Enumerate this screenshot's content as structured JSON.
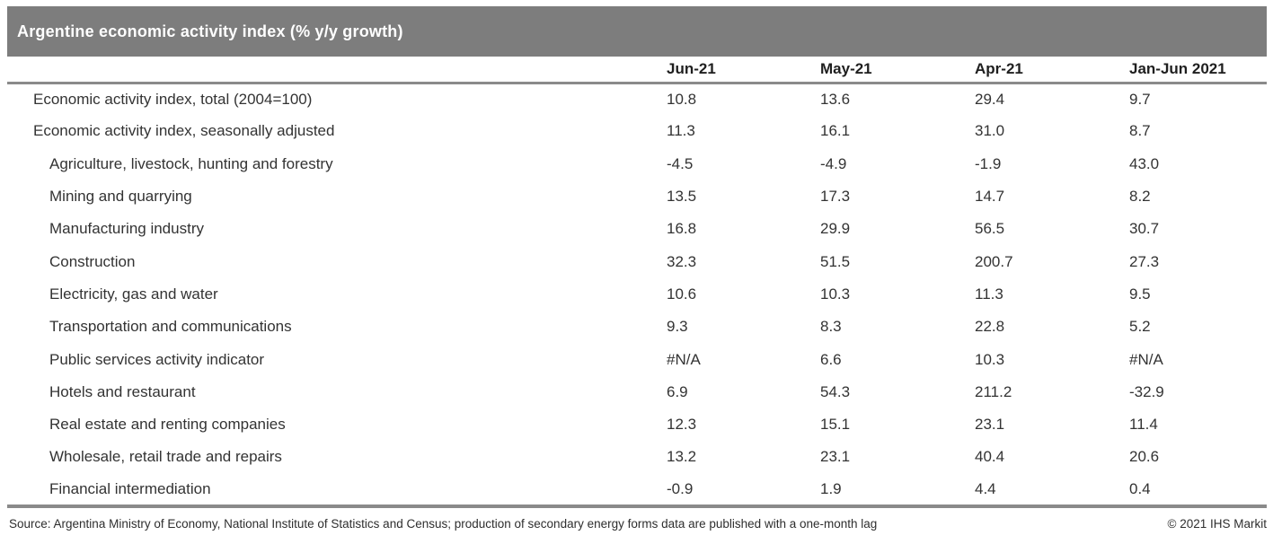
{
  "colors": {
    "title_bar_bg": "#7d7d7d",
    "title_text": "#ffffff",
    "rule_gray": "#8a8a8a",
    "body_text": "#333333"
  },
  "chart_data": {
    "type": "table",
    "title": "Argentine economic activity index (% y/y growth)",
    "columns": [
      "Jun-21",
      "May-21",
      "Apr-21",
      "Jan-Jun 2021"
    ],
    "rows": [
      {
        "label": "Economic activity index, total (2004=100)",
        "indent": false,
        "values": [
          "10.8",
          "13.6",
          "29.4",
          "9.7"
        ]
      },
      {
        "label": "Economic activity index, seasonally adjusted",
        "indent": false,
        "values": [
          "11.3",
          "16.1",
          "31.0",
          "8.7"
        ]
      },
      {
        "label": "Agriculture, livestock, hunting and forestry",
        "indent": true,
        "values": [
          "-4.5",
          "-4.9",
          "-1.9",
          "43.0"
        ]
      },
      {
        "label": "Mining and quarrying",
        "indent": true,
        "values": [
          "13.5",
          "17.3",
          "14.7",
          "8.2"
        ]
      },
      {
        "label": "Manufacturing industry",
        "indent": true,
        "values": [
          "16.8",
          "29.9",
          "56.5",
          "30.7"
        ]
      },
      {
        "label": "Construction",
        "indent": true,
        "values": [
          "32.3",
          "51.5",
          "200.7",
          "27.3"
        ]
      },
      {
        "label": "Electricity, gas and water",
        "indent": true,
        "values": [
          "10.6",
          "10.3",
          "11.3",
          "9.5"
        ]
      },
      {
        "label": "Transportation and communications",
        "indent": true,
        "values": [
          "9.3",
          "8.3",
          "22.8",
          "5.2"
        ]
      },
      {
        "label": "Public services activity indicator",
        "indent": true,
        "values": [
          "#N/A",
          "6.6",
          "10.3",
          "#N/A"
        ]
      },
      {
        "label": "Hotels and restaurant",
        "indent": true,
        "values": [
          "6.9",
          "54.3",
          "211.2",
          "-32.9"
        ]
      },
      {
        "label": "Real estate and renting companies",
        "indent": true,
        "values": [
          "12.3",
          "15.1",
          "23.1",
          "11.4"
        ]
      },
      {
        "label": "Wholesale, retail trade and repairs",
        "indent": true,
        "values": [
          "13.2",
          "23.1",
          "40.4",
          "20.6"
        ]
      },
      {
        "label": "Financial intermediation",
        "indent": true,
        "values": [
          "-0.9",
          "1.9",
          "4.4",
          "0.4"
        ]
      }
    ]
  },
  "footer": {
    "source": "Source: Argentina Ministry of Economy, National Institute of Statistics and Census; production of secondary energy forms data are published with a one-month lag",
    "copyright": "© 2021 IHS Markit"
  }
}
